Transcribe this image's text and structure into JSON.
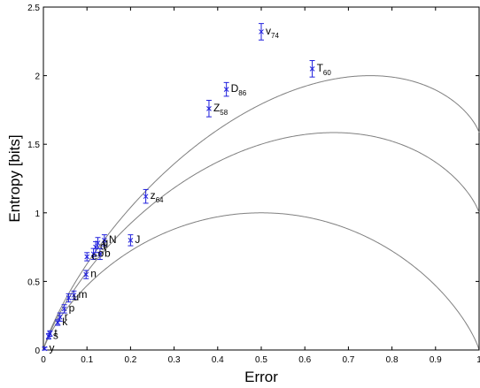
{
  "chart_data": {
    "type": "scatter",
    "title": "",
    "xlabel": "Error",
    "ylabel": "Entropy [bits]",
    "xlim": [
      0,
      1
    ],
    "ylim": [
      0,
      2.5
    ],
    "x_ticks": [
      "0",
      "0.1",
      "0.2",
      "0.3",
      "0.4",
      "0.5",
      "0.6",
      "0.7",
      "0.8",
      "0.9",
      "1"
    ],
    "y_ticks": [
      "0",
      "0.5",
      "1",
      "1.5",
      "2",
      "2.5"
    ],
    "x_tick_values": [
      0,
      0.1,
      0.2,
      0.3,
      0.4,
      0.5,
      0.6,
      0.7,
      0.8,
      0.9,
      1
    ],
    "y_tick_values": [
      0,
      0.5,
      1,
      1.5,
      2,
      2.5
    ],
    "grid": false,
    "colors": {
      "points": "#2020dd",
      "curves": "#808080",
      "axes": "#000000"
    },
    "curve_bounds": [
      {
        "n_classes": 2
      },
      {
        "n_classes": 3
      },
      {
        "n_classes": 4
      }
    ],
    "points": [
      {
        "label": "v",
        "sub": "74",
        "x": 0.5,
        "y": 2.32,
        "err": 0.06
      },
      {
        "label": "T",
        "sub": "60",
        "x": 0.617,
        "y": 2.05,
        "err": 0.06
      },
      {
        "label": "D",
        "sub": "86",
        "x": 0.42,
        "y": 1.9,
        "err": 0.05
      },
      {
        "label": "Z",
        "sub": "58",
        "x": 0.38,
        "y": 1.76,
        "err": 0.06
      },
      {
        "label": "z",
        "sub": "64",
        "x": 0.235,
        "y": 1.12,
        "err": 0.05
      },
      {
        "label": "J",
        "sub": "",
        "x": 0.2,
        "y": 0.8,
        "err": 0.04
      },
      {
        "label": "N",
        "sub": "",
        "x": 0.14,
        "y": 0.8,
        "err": 0.04
      },
      {
        "label": "g",
        "sub": "",
        "x": 0.125,
        "y": 0.78,
        "err": 0.04
      },
      {
        "label": "d",
        "sub": "",
        "x": 0.12,
        "y": 0.75,
        "err": 0.04
      },
      {
        "label": "b",
        "sub": "",
        "x": 0.13,
        "y": 0.7,
        "err": 0.04
      },
      {
        "label": "o",
        "sub": "",
        "x": 0.115,
        "y": 0.7,
        "err": 0.04
      },
      {
        "label": "e",
        "sub": "",
        "x": 0.1,
        "y": 0.68,
        "err": 0.03
      },
      {
        "label": "n",
        "sub": "",
        "x": 0.098,
        "y": 0.55,
        "err": 0.03
      },
      {
        "label": "m",
        "sub": "",
        "x": 0.07,
        "y": 0.4,
        "err": 0.03
      },
      {
        "label": "u",
        "sub": "",
        "x": 0.058,
        "y": 0.38,
        "err": 0.03
      },
      {
        "label": "p",
        "sub": "",
        "x": 0.048,
        "y": 0.3,
        "err": 0.03
      },
      {
        "label": "r",
        "sub": "",
        "x": 0.038,
        "y": 0.24,
        "err": 0.03
      },
      {
        "label": "k",
        "sub": "",
        "x": 0.033,
        "y": 0.2,
        "err": 0.02
      },
      {
        "label": "s",
        "sub": "",
        "x": 0.012,
        "y": 0.1,
        "err": 0.02
      },
      {
        "label": "t",
        "sub": "",
        "x": 0.015,
        "y": 0.12,
        "err": 0.02
      },
      {
        "label": "y",
        "sub": "",
        "x": 0.003,
        "y": 0.01,
        "err": 0.01
      }
    ]
  }
}
